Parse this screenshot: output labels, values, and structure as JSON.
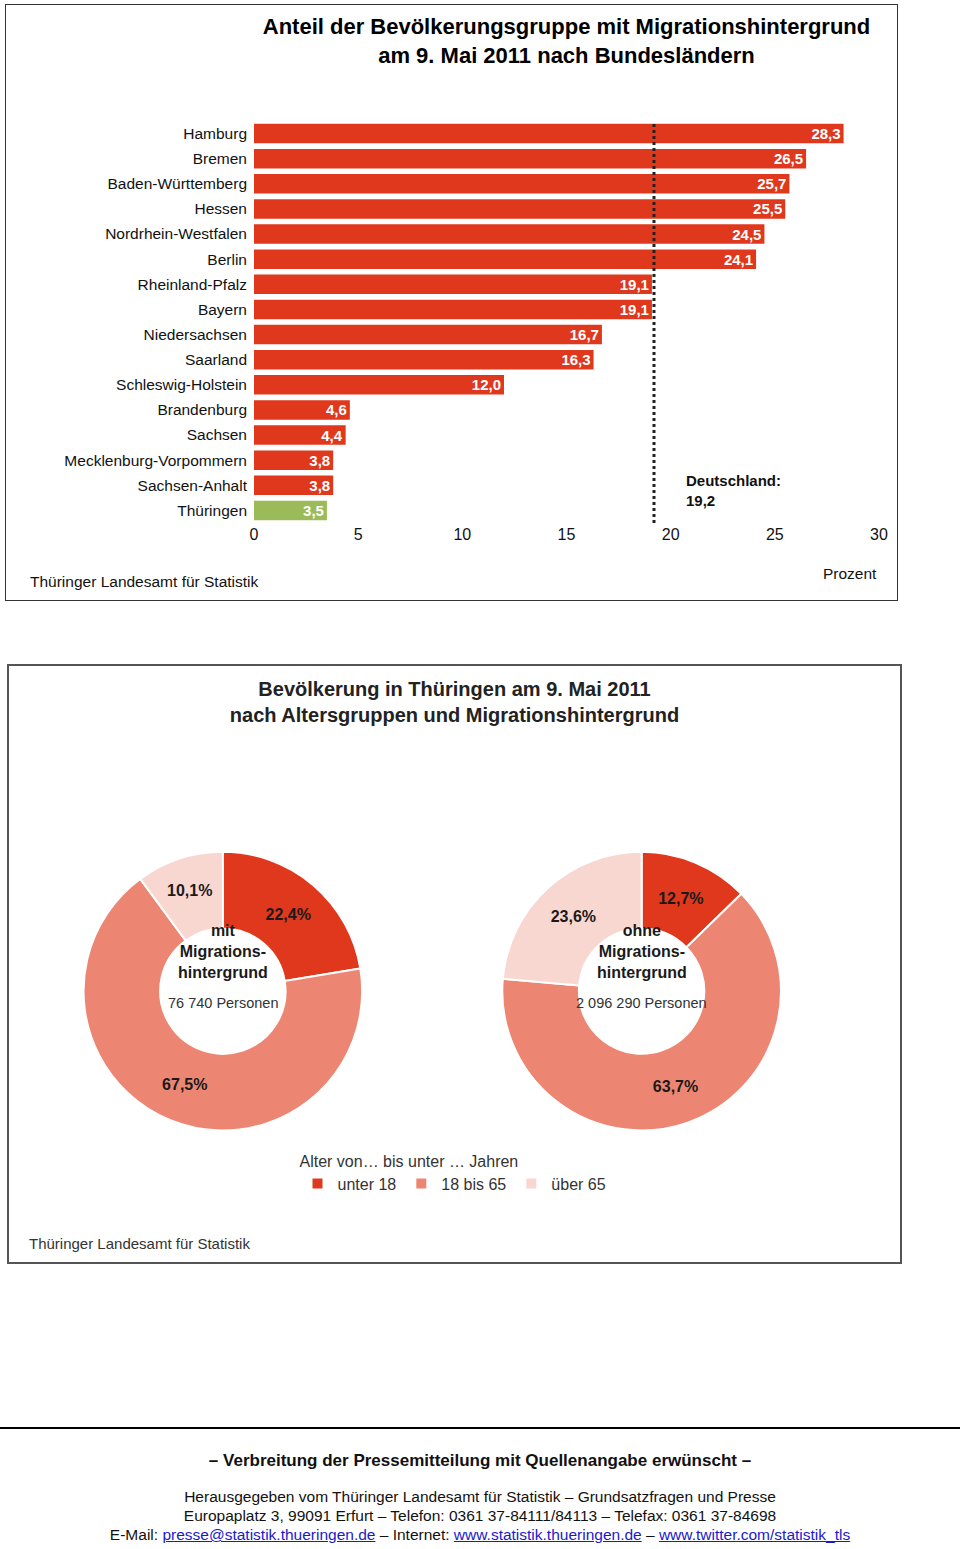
{
  "chart_data": [
    {
      "type": "bar",
      "orientation": "horizontal",
      "title": [
        "Anteil der Bevölkerungsgruppe mit Migrationshintergrund",
        "am 9. Mai 2011 nach Bundesländern"
      ],
      "categories": [
        "Hamburg",
        "Bremen",
        "Baden-Württemberg",
        "Hessen",
        "Nordrhein-Westfalen",
        "Berlin",
        "Rheinland-Pfalz",
        "Bayern",
        "Niedersachsen",
        "Saarland",
        "Schleswig-Holstein",
        "Brandenburg",
        "Sachsen",
        "Mecklenburg-Vorpommern",
        "Sachsen-Anhalt",
        "Thüringen"
      ],
      "values": [
        28.3,
        26.5,
        25.7,
        25.5,
        24.5,
        24.1,
        19.1,
        19.1,
        16.7,
        16.3,
        12.0,
        4.6,
        4.4,
        3.8,
        3.8,
        3.5
      ],
      "value_labels": [
        "28,3",
        "26,5",
        "25,7",
        "25,5",
        "24,5",
        "24,1",
        "19,1",
        "19,1",
        "16,7",
        "16,3",
        "12,0",
        "4,6",
        "4,4",
        "3,8",
        "3,8",
        "3,5"
      ],
      "colors": [
        "#e0381c",
        "#e0381c",
        "#e0381c",
        "#e0381c",
        "#e0381c",
        "#e0381c",
        "#e0381c",
        "#e0381c",
        "#e0381c",
        "#e0381c",
        "#e0381c",
        "#e0381c",
        "#e0381c",
        "#e0381c",
        "#e0381c",
        "#9bbb59"
      ],
      "xlim": [
        0,
        30
      ],
      "xticks": [
        0,
        5,
        10,
        15,
        20,
        25,
        30
      ],
      "x_label": "Prozent",
      "reference_line": {
        "value": 19.2,
        "label": [
          "Deutschland:",
          "19,2"
        ]
      },
      "source": "Thüringer Landesamt für Statistik",
      "grid": false,
      "data_labels": true
    },
    {
      "type": "donut",
      "title": [
        "Bevölkerung in Thüringen am 9. Mai 2011",
        "nach Altersgruppen und Migrationshintergrund"
      ],
      "legend_title": "Alter von… bis unter … Jahren",
      "categories": [
        "unter 18",
        "18 bis 65",
        "über 65"
      ],
      "colors": [
        "#e0381c",
        "#ec8672",
        "#f8d7d1"
      ],
      "legend": "bottom",
      "data_labels": true,
      "source": "Thüringer Landesamt für Statistik",
      "pies": [
        {
          "center_label": [
            "mit",
            "Migrations-",
            "hintergrund"
          ],
          "subtitle": "76 740 Personen",
          "values": [
            22.4,
            67.5,
            10.1
          ],
          "value_labels": [
            "22,4%",
            "67,5%",
            "10,1%"
          ]
        },
        {
          "center_label": [
            "ohne",
            "Migrations-",
            "hintergrund"
          ],
          "subtitle": "2 096 290 Personen",
          "values": [
            12.7,
            63.7,
            23.6
          ],
          "value_labels": [
            "12,7%",
            "63,7%",
            "23,6%"
          ]
        }
      ]
    }
  ],
  "footer": {
    "notice": "– Verbreitung der Pressemitteilung mit Quellenangabe erwünscht –",
    "lines": [
      [
        {
          "text": "Herausgegeben vom Thüringer Landesamt für Statistik – Grundsatzfragen und Presse"
        }
      ],
      [
        {
          "text": "Europaplatz 3, 99091 Erfurt – Telefon: 0361 37-84111/84113 – Telefax: 0361 37-84698"
        }
      ],
      [
        {
          "text": "E-Mail: "
        },
        {
          "text": "presse@statistik.thueringen.de",
          "link": true
        },
        {
          "text": " – Internet: "
        },
        {
          "text": "www.statistik.thueringen.de",
          "link": true
        },
        {
          "text": " – "
        },
        {
          "text": "www.twitter.com/statistik_tls",
          "link": true
        }
      ]
    ]
  }
}
